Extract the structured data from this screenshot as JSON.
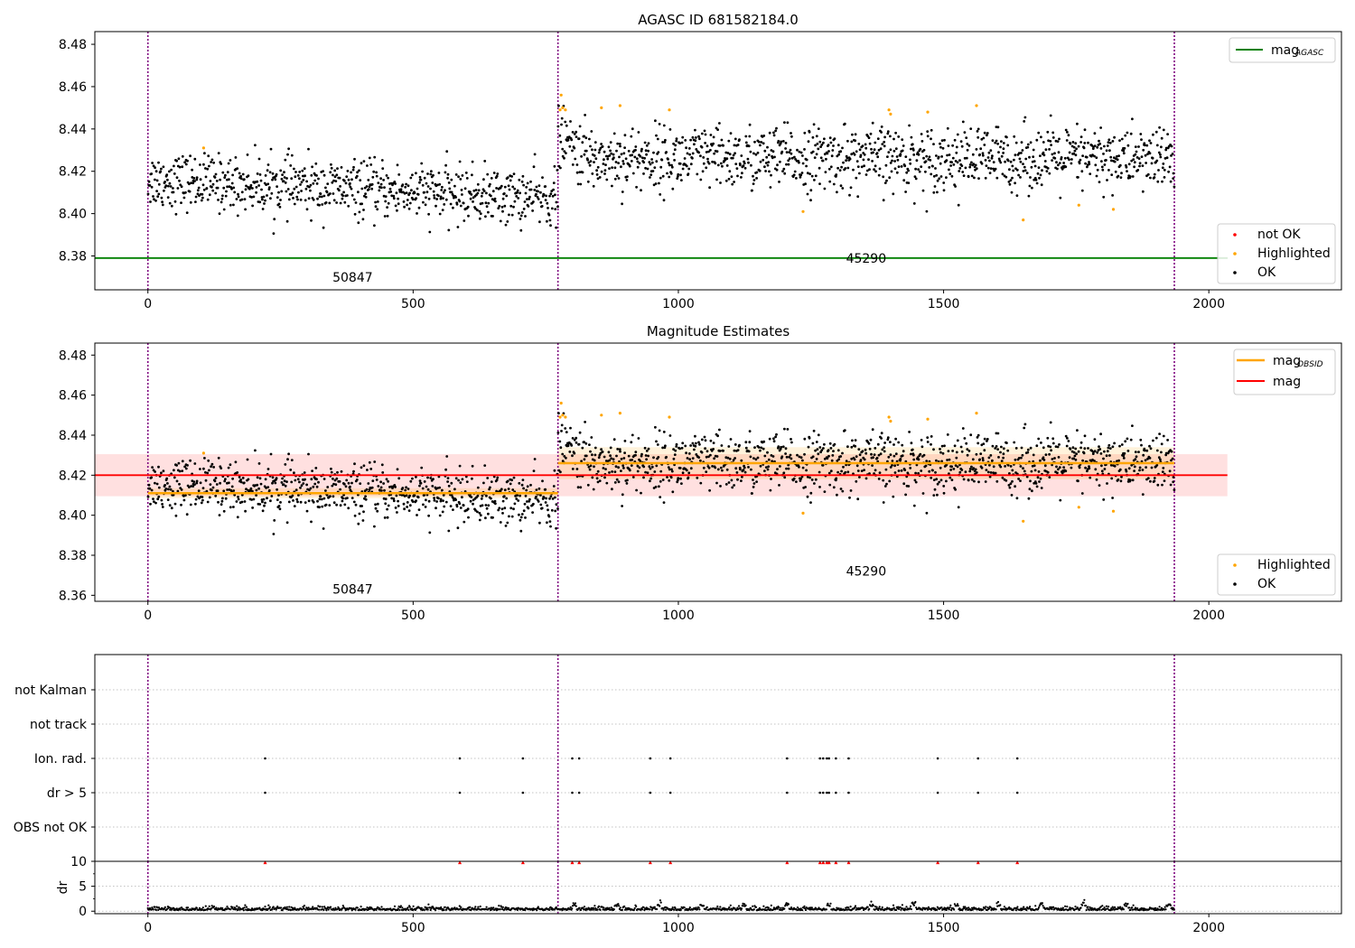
{
  "figure": {
    "panel1_title": "AGASC ID 681582184.0",
    "panel2_title": "Magnitude Estimates"
  },
  "colors": {
    "ok": "#000000",
    "highlighted": "#ffa500",
    "not_ok": "#ff0000",
    "mag_agasc": "#008000",
    "mag": "#ff0000",
    "mag_obsid": "#ffa500",
    "obs_boundary": "#800080"
  },
  "chart_data": [
    {
      "type": "scatter",
      "title": "AGASC ID 681582184.0",
      "xlim": [
        -100,
        2250
      ],
      "ylim": [
        8.364,
        8.486
      ],
      "x_ticks": [
        0,
        500,
        1000,
        1500,
        2000
      ],
      "y_ticks": [
        8.38,
        8.4,
        8.42,
        8.44,
        8.46,
        8.48
      ],
      "y_tick_labels": [
        "8.38",
        "8.40",
        "8.42",
        "8.44",
        "8.46",
        "8.48"
      ],
      "grid": false,
      "obs_boundaries": [
        0,
        773,
        1935
      ],
      "obsids": [
        {
          "label": "50847",
          "x": 386,
          "y": 8.37
        },
        {
          "label": "45290",
          "x": 1354,
          "y": 8.379
        }
      ],
      "lines": [
        {
          "name": "mag_AGASC",
          "y": 8.379
        }
      ],
      "segments": [
        {
          "x_start": 0,
          "x_end": 773,
          "mean": 8.411,
          "std": 0.0065
        },
        {
          "x_start": 773,
          "x_end": 1935,
          "mean": 8.426,
          "std": 0.0075
        }
      ],
      "highlighted_points": [
        [
          105,
          8.431
        ],
        [
          777,
          8.449
        ],
        [
          779,
          8.456
        ],
        [
          782,
          8.45
        ],
        [
          787,
          8.449
        ],
        [
          855,
          8.45
        ],
        [
          890,
          8.451
        ],
        [
          983,
          8.449
        ],
        [
          1235,
          8.401
        ],
        [
          1397,
          8.449
        ],
        [
          1400,
          8.447
        ],
        [
          1470,
          8.448
        ],
        [
          1562,
          8.451
        ],
        [
          1650,
          8.397
        ],
        [
          1755,
          8.404
        ],
        [
          1820,
          8.402
        ]
      ],
      "legend_upper": {
        "entries": [
          "mag_AGASC"
        ],
        "position": "upper right"
      },
      "legend_lower": {
        "entries": [
          "not OK",
          "Highlighted",
          "OK"
        ],
        "position": "lower right"
      }
    },
    {
      "type": "scatter",
      "title": "Magnitude Estimates",
      "xlim": [
        -100,
        2250
      ],
      "ylim": [
        8.357,
        8.486
      ],
      "x_ticks": [
        0,
        500,
        1000,
        1500,
        2000
      ],
      "y_ticks": [
        8.36,
        8.38,
        8.4,
        8.42,
        8.44,
        8.46,
        8.48
      ],
      "y_tick_labels": [
        "8.36",
        "8.38",
        "8.40",
        "8.42",
        "8.44",
        "8.46",
        "8.48"
      ],
      "grid": false,
      "obs_boundaries": [
        0,
        773,
        1935
      ],
      "obsids": [
        {
          "label": "50847",
          "x": 386,
          "y": 8.363
        },
        {
          "label": "45290",
          "x": 1354,
          "y": 8.372
        }
      ],
      "mag": {
        "value": 8.42,
        "band": [
          8.4095,
          8.4305
        ],
        "x_range": [
          -100,
          2035
        ]
      },
      "mag_obsid": [
        {
          "x_start": 0,
          "x_end": 773,
          "value": 8.411,
          "band": [
            8.4085,
            8.4135
          ]
        },
        {
          "x_start": 773,
          "x_end": 1935,
          "value": 8.426,
          "band": [
            8.418,
            8.434
          ]
        }
      ],
      "legend_upper": {
        "entries": [
          "mag_OBSID",
          "mag"
        ],
        "position": "upper right"
      },
      "legend_lower": {
        "entries": [
          "Highlighted",
          "OK"
        ],
        "position": "lower right"
      }
    },
    {
      "type": "scatter",
      "title": "",
      "xlim": [
        -100,
        2250
      ],
      "x_ticks": [
        0,
        500,
        1000,
        1500,
        2000
      ],
      "categories": [
        "not Kalman",
        "not track",
        "Ion. rad.",
        "dr > 5",
        "OBS not OK"
      ],
      "flag_x": {
        "not Kalman": [],
        "not track": [],
        "Ion. rad.": [
          221,
          588,
          707,
          800,
          813,
          947,
          985,
          1205,
          1267,
          1273,
          1280,
          1284,
          1297,
          1321,
          1489,
          1565,
          1639
        ],
        "dr > 5": [
          221,
          588,
          707,
          800,
          813,
          947,
          985,
          1205,
          1267,
          1273,
          1280,
          1284,
          1297,
          1321,
          1489,
          1565,
          1639
        ],
        "OBS not OK": []
      },
      "grid": true,
      "obs_boundaries": [
        0,
        773,
        1935
      ]
    },
    {
      "type": "scatter",
      "title": "",
      "xlim": [
        -100,
        2250
      ],
      "ylim": [
        -0.5,
        10
      ],
      "x_ticks": [
        0,
        500,
        1000,
        1500,
        2000
      ],
      "y_ticks": [
        0,
        5,
        10
      ],
      "y_tick_labels": [
        "0",
        "5",
        "10"
      ],
      "ylabel": "dr",
      "grid": true,
      "dr_clipped_markers_x": [
        221,
        588,
        707,
        800,
        813,
        947,
        985,
        1205,
        1267,
        1273,
        1280,
        1284,
        1297,
        1321,
        1489,
        1565,
        1639
      ],
      "obs_boundaries": [
        0,
        773,
        1935
      ]
    }
  ],
  "x_tick_labels": [
    "0",
    "500",
    "1000",
    "1500",
    "2000"
  ],
  "legends": {
    "upper_1": [
      "mag",
      "AGASC"
    ],
    "lower_1": [
      "not OK",
      "Highlighted",
      "OK"
    ],
    "upper_2_a": [
      "mag",
      "OBSID"
    ],
    "upper_2_b": "mag",
    "lower_2": [
      "Highlighted",
      "OK"
    ]
  }
}
